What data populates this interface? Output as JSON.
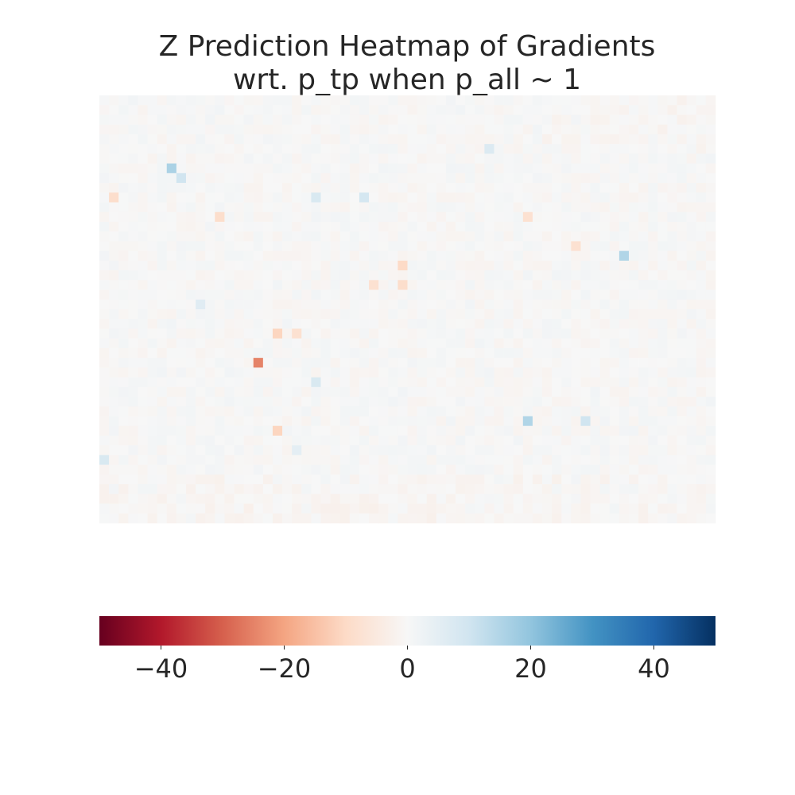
{
  "chart_data": {
    "type": "heatmap",
    "title_line1": "Z Prediction Heatmap of Gradients",
    "title_line2": "wrt. p_tp when p_all ~ 1",
    "xlabel": "",
    "ylabel": "",
    "n_cols": 64,
    "n_rows": 44,
    "cmap": "RdBu",
    "vmin": -50,
    "vmax": 50,
    "colorbar": {
      "orientation": "horizontal",
      "ticks": [
        -40,
        -20,
        0,
        20,
        40
      ],
      "tick_labels": [
        "−40",
        "−20",
        "0",
        "20",
        "40"
      ]
    },
    "notable_cells": [
      {
        "row": 7,
        "col": 7,
        "value": 16
      },
      {
        "row": 8,
        "col": 8,
        "value": 10
      },
      {
        "row": 10,
        "col": 22,
        "value": 8
      },
      {
        "row": 10,
        "col": 27,
        "value": 9
      },
      {
        "row": 10,
        "col": 1,
        "value": -9
      },
      {
        "row": 12,
        "col": 12,
        "value": -9
      },
      {
        "row": 12,
        "col": 44,
        "value": -8
      },
      {
        "row": 5,
        "col": 40,
        "value": 7
      },
      {
        "row": 15,
        "col": 49,
        "value": -8
      },
      {
        "row": 16,
        "col": 54,
        "value": 15
      },
      {
        "row": 17,
        "col": 31,
        "value": -10
      },
      {
        "row": 19,
        "col": 28,
        "value": -8
      },
      {
        "row": 19,
        "col": 31,
        "value": -9
      },
      {
        "row": 21,
        "col": 10,
        "value": 6
      },
      {
        "row": 24,
        "col": 18,
        "value": -11
      },
      {
        "row": 24,
        "col": 20,
        "value": -8
      },
      {
        "row": 27,
        "col": 16,
        "value": -25
      },
      {
        "row": 29,
        "col": 22,
        "value": 8
      },
      {
        "row": 33,
        "col": 44,
        "value": 15
      },
      {
        "row": 33,
        "col": 50,
        "value": 10
      },
      {
        "row": 34,
        "col": 18,
        "value": -11
      },
      {
        "row": 37,
        "col": 0,
        "value": 8
      },
      {
        "row": 36,
        "col": 20,
        "value": 5
      }
    ]
  }
}
